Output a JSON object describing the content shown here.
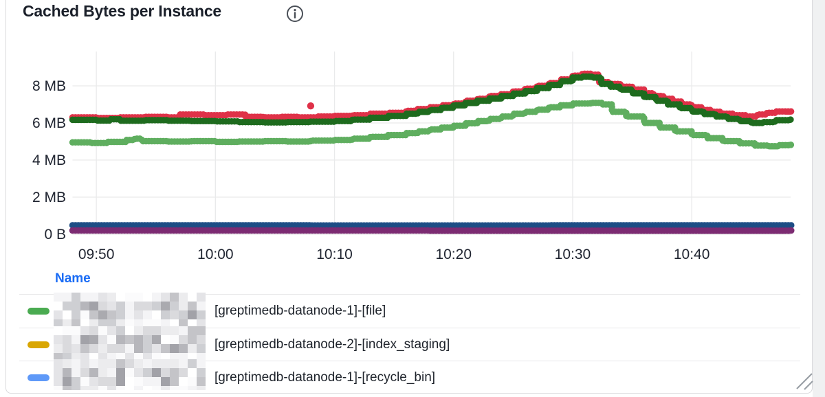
{
  "panel": {
    "title": "Cached Bytes per Instance",
    "info_icon": "info-icon"
  },
  "chart_data": {
    "type": "line",
    "style": "dotted-step-scatter",
    "title": "Cached Bytes per Instance",
    "grid": true,
    "x_axis": {
      "start_time": "09:48",
      "end_time": "10:48",
      "ticks": [
        {
          "label": "09:50",
          "t": 2
        },
        {
          "label": "10:00",
          "t": 12
        },
        {
          "label": "10:10",
          "t": 22
        },
        {
          "label": "10:20",
          "t": 32
        },
        {
          "label": "10:30",
          "t": 42
        },
        {
          "label": "10:40",
          "t": 52
        }
      ]
    },
    "y_axis": {
      "unit": "bytes",
      "ylim_mb": [
        0,
        9.8
      ],
      "ticks": [
        {
          "label": "8 MB",
          "mb": 8
        },
        {
          "label": "6 MB",
          "mb": 6
        },
        {
          "label": "4 MB",
          "mb": 4
        },
        {
          "label": "2 MB",
          "mb": 2
        },
        {
          "label": "0 B",
          "mb": 0
        }
      ]
    },
    "series": [
      {
        "name": "red",
        "color": "#df3148",
        "points": [
          [
            0,
            6.3
          ],
          [
            2,
            6.27
          ],
          [
            4,
            6.3
          ],
          [
            6,
            6.33
          ],
          [
            8,
            6.3
          ],
          [
            9,
            6.45
          ],
          [
            11,
            6.42
          ],
          [
            13,
            6.45
          ],
          [
            14.5,
            6.33
          ],
          [
            16,
            6.3
          ],
          [
            17.5,
            6.33
          ],
          [
            19,
            6.3
          ],
          [
            20.5,
            6.35
          ],
          [
            22,
            6.38
          ],
          [
            23.5,
            6.42
          ],
          [
            25,
            6.5
          ],
          [
            26.5,
            6.55
          ],
          [
            28,
            6.65
          ],
          [
            29,
            6.75
          ],
          [
            30,
            6.85
          ],
          [
            31,
            6.95
          ],
          [
            32,
            7.05
          ],
          [
            33,
            7.2
          ],
          [
            34,
            7.3
          ],
          [
            35,
            7.45
          ],
          [
            36,
            7.55
          ],
          [
            37,
            7.7
          ],
          [
            38,
            7.85
          ],
          [
            39,
            8.0
          ],
          [
            40,
            8.15
          ],
          [
            41,
            8.35
          ],
          [
            42,
            8.55
          ],
          [
            42.8,
            8.65
          ],
          [
            43.6,
            8.6
          ],
          [
            44.2,
            8.2
          ],
          [
            45,
            8.1
          ],
          [
            46,
            7.95
          ],
          [
            47,
            7.8
          ],
          [
            48,
            7.6
          ],
          [
            48.8,
            7.45
          ],
          [
            49.6,
            7.3
          ],
          [
            50.4,
            7.15
          ],
          [
            51.2,
            7.0
          ],
          [
            52,
            6.85
          ],
          [
            52.8,
            6.7
          ],
          [
            53.6,
            6.6
          ],
          [
            54.4,
            6.5
          ],
          [
            55.5,
            6.42
          ],
          [
            56.5,
            6.35
          ],
          [
            57.5,
            6.45
          ],
          [
            58.3,
            6.55
          ],
          [
            59,
            6.62
          ],
          [
            60.3,
            6.62
          ]
        ]
      },
      {
        "name": "dark-green",
        "color": "#1e6b1e",
        "points": [
          [
            0,
            6.17
          ],
          [
            2,
            6.13
          ],
          [
            3.2,
            6.2
          ],
          [
            4,
            6.12
          ],
          [
            6,
            6.15
          ],
          [
            8,
            6.12
          ],
          [
            10,
            6.1
          ],
          [
            12,
            6.08
          ],
          [
            14,
            6.05
          ],
          [
            16,
            6.03
          ],
          [
            18,
            6.05
          ],
          [
            20,
            6.07
          ],
          [
            22,
            6.1
          ],
          [
            23.5,
            6.18
          ],
          [
            25,
            6.28
          ],
          [
            26.5,
            6.38
          ],
          [
            28,
            6.5
          ],
          [
            29,
            6.6
          ],
          [
            30,
            6.7
          ],
          [
            31,
            6.82
          ],
          [
            32,
            6.95
          ],
          [
            33,
            7.08
          ],
          [
            34,
            7.2
          ],
          [
            35,
            7.32
          ],
          [
            36,
            7.45
          ],
          [
            37,
            7.58
          ],
          [
            38,
            7.72
          ],
          [
            39,
            7.88
          ],
          [
            40,
            8.05
          ],
          [
            41,
            8.25
          ],
          [
            42,
            8.45
          ],
          [
            42.8,
            8.5
          ],
          [
            43.6,
            8.45
          ],
          [
            44.4,
            8.1
          ],
          [
            45.2,
            7.95
          ],
          [
            46,
            7.8
          ],
          [
            47,
            7.6
          ],
          [
            48,
            7.4
          ],
          [
            49,
            7.2
          ],
          [
            50,
            7.0
          ],
          [
            51,
            6.8
          ],
          [
            52,
            6.62
          ],
          [
            53,
            6.48
          ],
          [
            54,
            6.35
          ],
          [
            55,
            6.22
          ],
          [
            56,
            6.1
          ],
          [
            57,
            6.0
          ],
          [
            58,
            6.05
          ],
          [
            59,
            6.15
          ],
          [
            60.3,
            6.2
          ]
        ]
      },
      {
        "name": "light-green",
        "color": "#5fae5f",
        "points": [
          [
            0,
            4.95
          ],
          [
            1.5,
            4.92
          ],
          [
            3,
            4.98
          ],
          [
            4.5,
            5.08
          ],
          [
            5.2,
            5.15
          ],
          [
            5.8,
            5.02
          ],
          [
            8,
            5.0
          ],
          [
            10,
            5.02
          ],
          [
            12,
            4.98
          ],
          [
            14,
            5.0
          ],
          [
            16,
            5.02
          ],
          [
            18,
            5.0
          ],
          [
            20,
            5.05
          ],
          [
            22,
            5.08
          ],
          [
            23.5,
            5.15
          ],
          [
            25,
            5.25
          ],
          [
            26.5,
            5.35
          ],
          [
            28,
            5.45
          ],
          [
            29,
            5.55
          ],
          [
            30,
            5.65
          ],
          [
            31,
            5.75
          ],
          [
            32,
            5.85
          ],
          [
            33,
            5.98
          ],
          [
            34,
            6.1
          ],
          [
            35,
            6.22
          ],
          [
            36,
            6.35
          ],
          [
            37,
            6.5
          ],
          [
            38,
            6.6
          ],
          [
            39,
            6.72
          ],
          [
            40,
            6.85
          ],
          [
            41,
            6.95
          ],
          [
            42,
            7.05
          ],
          [
            43.5,
            7.08
          ],
          [
            44.5,
            7.0
          ],
          [
            45.3,
            6.6
          ],
          [
            46.5,
            6.35
          ],
          [
            48,
            6.0
          ],
          [
            49.3,
            5.75
          ],
          [
            50.6,
            5.55
          ],
          [
            52,
            5.35
          ],
          [
            53.3,
            5.18
          ],
          [
            54.6,
            5.02
          ],
          [
            56,
            4.9
          ],
          [
            57.3,
            4.78
          ],
          [
            58.5,
            4.75
          ],
          [
            59.3,
            4.8
          ],
          [
            60.3,
            4.82
          ]
        ]
      },
      {
        "name": "dark-blue",
        "color": "#1d4d85",
        "points": [
          [
            0,
            0.48
          ],
          [
            20,
            0.47
          ],
          [
            40,
            0.48
          ],
          [
            60.3,
            0.48
          ]
        ]
      },
      {
        "name": "purple",
        "color": "#7c2b72",
        "points": [
          [
            0,
            0.2
          ],
          [
            30,
            0.19
          ],
          [
            60.3,
            0.2
          ]
        ]
      }
    ],
    "outliers": [
      {
        "series": "red",
        "t": 20,
        "mb": 6.92
      }
    ]
  },
  "legend": {
    "header": "Name",
    "rows": [
      {
        "color": "#4aab51",
        "redacted_prefix": true,
        "label": "[greptimedb-datanode-1]-[file]"
      },
      {
        "color": "#d9a602",
        "redacted_prefix": true,
        "label": "[greptimedb-datanode-2]-[index_staging]"
      },
      {
        "color": "#5f99f8",
        "redacted_prefix": true,
        "label": "[greptimedb-datanode-1]-[recycle_bin]"
      }
    ]
  },
  "colors": {
    "accent_blue": "#1a6cf5",
    "grid": "#e9eaeb",
    "axis_text": "#1f2430"
  }
}
